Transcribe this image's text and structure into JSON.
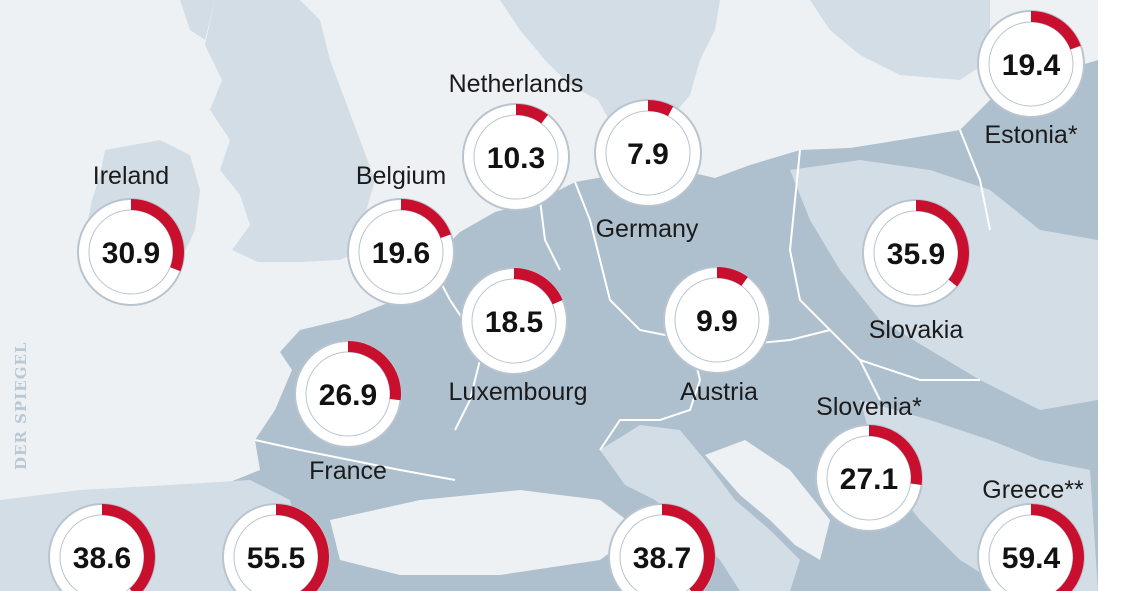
{
  "colors": {
    "sea": "#eef1f4",
    "land_light": "#d3dde6",
    "land_dark": "#aebfcd",
    "border": "#ffffff",
    "share": "#c8102e",
    "ring_bg": "#ffffff",
    "ring_edge": "#b8c4ce",
    "inner_disc": "#c5d3de"
  },
  "watermark": "DER SPIEGEL",
  "chart_data": {
    "type": "pie",
    "subtype": "donut-map",
    "values_unit": "percent",
    "countries": [
      {
        "name": "Estonia*",
        "value": 19.4
      },
      {
        "name": "Netherlands",
        "value": 10.3
      },
      {
        "name": "Germany",
        "value": 7.9
      },
      {
        "name": "Ireland",
        "value": 30.9
      },
      {
        "name": "Belgium",
        "value": 19.6
      },
      {
        "name": "Slovakia",
        "value": 35.9
      },
      {
        "name": "Luxembourg",
        "value": 18.5
      },
      {
        "name": "Austria",
        "value": 9.9
      },
      {
        "name": "France",
        "value": 26.9
      },
      {
        "name": "Slovenia*",
        "value": 27.1
      },
      {
        "name": "Greece**",
        "value": 59.4
      },
      {
        "name": "",
        "value": 38.6
      },
      {
        "name": "",
        "value": 55.5
      },
      {
        "name": "",
        "value": 38.7
      }
    ]
  }
}
